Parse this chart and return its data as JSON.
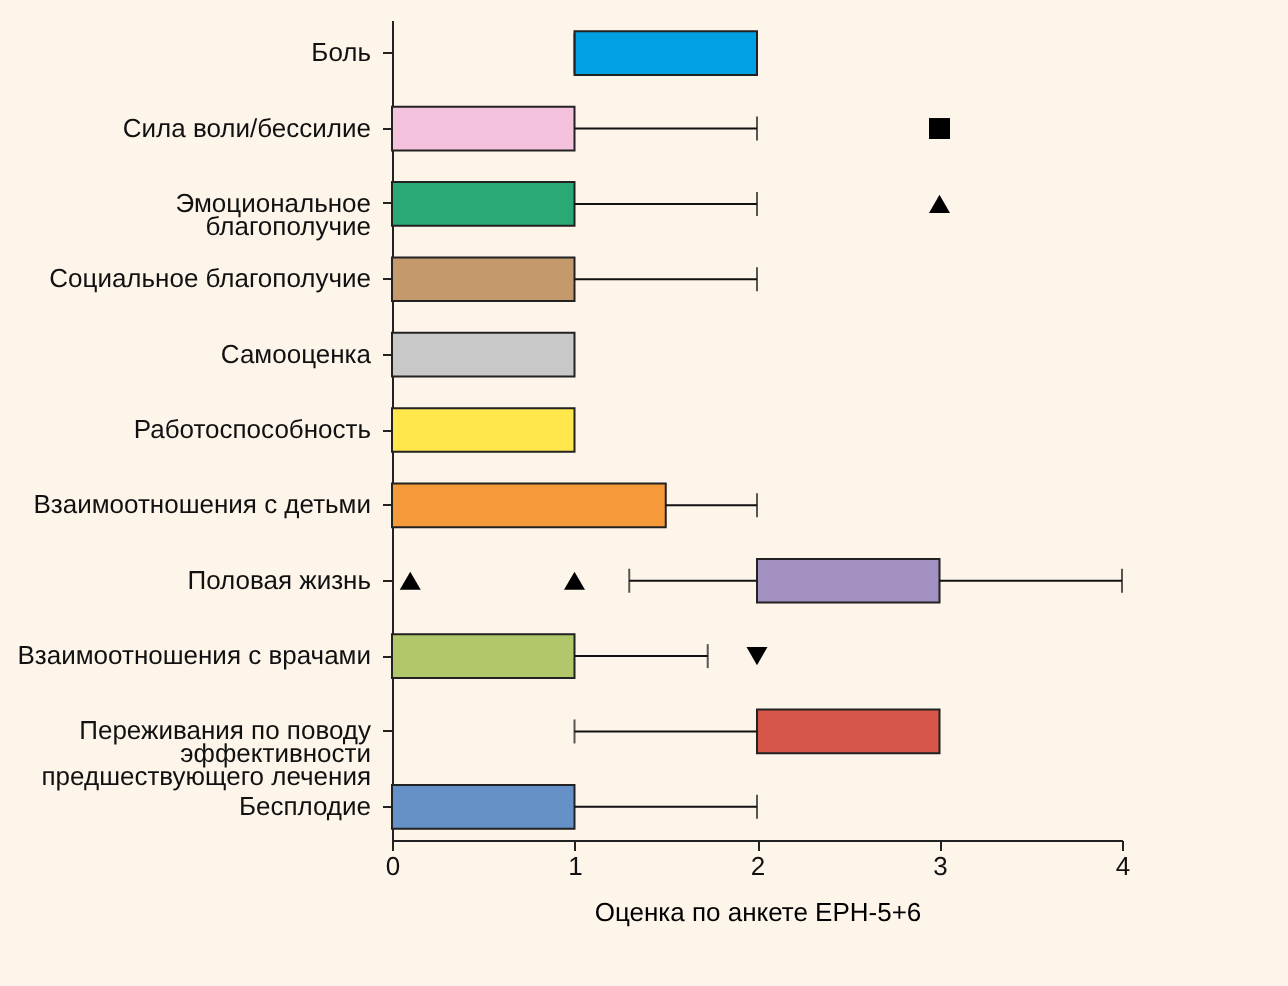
{
  "chart_data": {
    "type": "box",
    "orientation": "horizontal",
    "xlabel": "Оценка по анкете EPH-5+6",
    "xlim": [
      0,
      4
    ],
    "xticks": [
      0,
      1,
      2,
      3,
      4
    ],
    "grid": false,
    "categories": [
      "Боль",
      "Сила воли/бессилие",
      "Эмоциональное\nблагополучие",
      "Социальное благополучие",
      "Самооценка",
      "Работоспособность",
      "Взаимоотношения с детьми",
      "Половая жизнь",
      "Взаимоотношения с врачами",
      "Переживания по поводу\nэффективности\nпредшествующего лечения",
      "Бесплодие"
    ],
    "series": [
      {
        "type": "box",
        "colors": [
          "#00a0e3",
          "#f5c2dd",
          "#2aa876",
          "#c49a6c",
          "#c8c8c8",
          "#ffe74c",
          "#f59a3b",
          "#a291c0",
          "#b1c76a",
          "#d6564a",
          "#6690c8"
        ],
        "boxes": [
          {
            "low": 1,
            "q1": 1,
            "median": 1,
            "q3": 2,
            "high": 2
          },
          {
            "low": 0,
            "q1": 0,
            "median": 0,
            "q3": 1,
            "high": 2
          },
          {
            "low": 0,
            "q1": 0,
            "median": 0,
            "q3": 1,
            "high": 2
          },
          {
            "low": 0,
            "q1": 0,
            "median": 0,
            "q3": 1,
            "high": 2
          },
          {
            "low": 0,
            "q1": 0,
            "median": 0,
            "q3": 1,
            "high": 1
          },
          {
            "low": 0,
            "q1": 0,
            "median": 0,
            "q3": 1,
            "high": 1
          },
          {
            "low": 0,
            "q1": 0,
            "median": 0,
            "q3": 1.5,
            "high": 2
          },
          {
            "low": 1.3,
            "q1": 2,
            "median": 2,
            "q3": 3,
            "high": 4
          },
          {
            "low": 0,
            "q1": 0,
            "median": 0,
            "q3": 1,
            "high": 1.73
          },
          {
            "low": 1,
            "q1": 2,
            "median": 2,
            "q3": 3,
            "high": 3
          },
          {
            "low": 0,
            "q1": 0,
            "median": 0,
            "q3": 1,
            "high": 2
          }
        ]
      },
      {
        "type": "scatter",
        "marker": "square",
        "color": "#000000",
        "x": [
          "Сила воли/бессилие"
        ],
        "values": [
          3
        ]
      },
      {
        "type": "scatter",
        "marker": "triangle",
        "color": "#000000",
        "x": [
          "Эмоциональное\nблагополучие",
          "Половая жизнь",
          "Половая жизнь"
        ],
        "values": [
          3,
          0.1,
          1
        ]
      },
      {
        "type": "scatter",
        "marker": "triangle-down",
        "color": "#000000",
        "x": [
          "Взаимоотношения с врачами"
        ],
        "values": [
          2
        ]
      }
    ]
  }
}
